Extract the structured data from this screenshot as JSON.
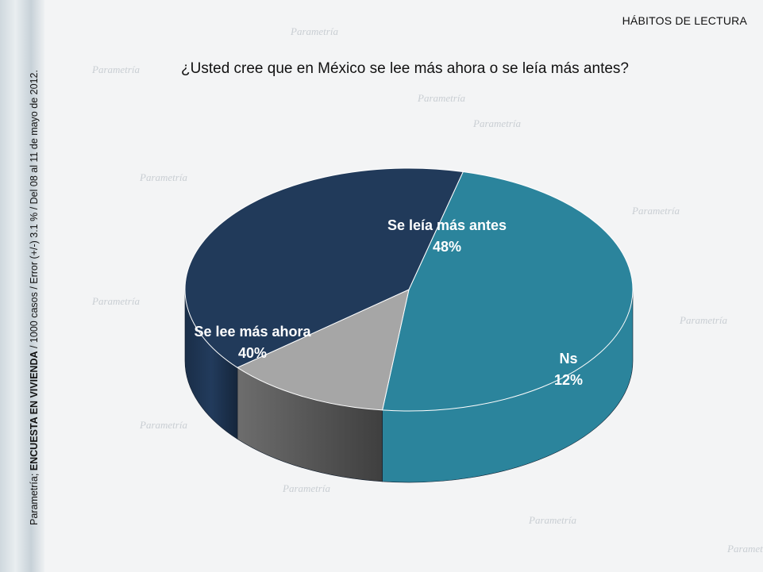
{
  "header": {
    "section": "HÁBITOS DE LECTURA"
  },
  "question": "¿Usted cree que en México se lee más ahora o se leía más antes?",
  "side_note": {
    "prefix": "Parametría; ",
    "bold": "ENCUESTA EN VIVIENDA",
    "suffix": " / 1000 casos / Error (+/-) 3.1 % / Del 08 al 11 de mayo de 2012."
  },
  "watermark": {
    "brand": "Parametría"
  },
  "chart_data": {
    "type": "pie",
    "title": "",
    "slices": [
      {
        "label": "Se leía más antes",
        "value": 48,
        "display": "48%",
        "color": "#2b849c"
      },
      {
        "label": "Ns",
        "value": 12,
        "display": "12%",
        "color": "#a6a6a6"
      },
      {
        "label": "Se lee más ahora",
        "value": 40,
        "display": "40%",
        "color": "#213a5a"
      }
    ]
  }
}
